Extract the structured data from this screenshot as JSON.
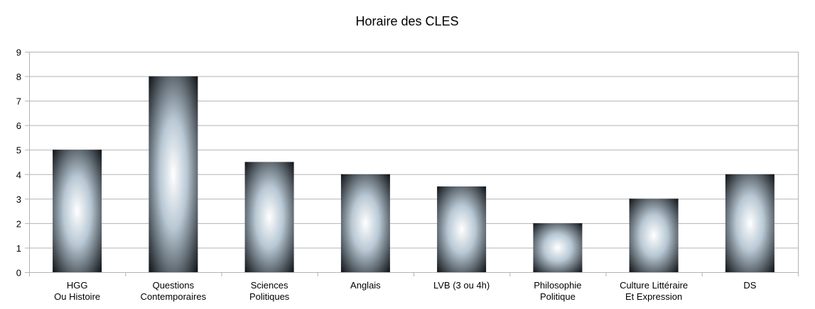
{
  "chart_data": {
    "type": "bar",
    "title": "Horaire des CLES",
    "xlabel": "",
    "ylabel": "",
    "categories": [
      [
        "HGG",
        "Ou Histoire"
      ],
      [
        "Questions",
        "Contemporaires"
      ],
      [
        "Sciences",
        "Politiques"
      ],
      [
        "Anglais"
      ],
      [
        "LVB (3 ou 4h)"
      ],
      [
        "Philosophie",
        "Politique"
      ],
      [
        "Culture Littéraire",
        "Et Expression"
      ],
      [
        "DS"
      ]
    ],
    "values": [
      5,
      8,
      4.5,
      4,
      3.5,
      2,
      3,
      4
    ],
    "ylim": [
      0,
      9
    ],
    "yticks": [
      0,
      1,
      2,
      3,
      4,
      5,
      6,
      7,
      8,
      9
    ],
    "grid": true,
    "legend": "none",
    "colors": {
      "bar_center": "#ffffff",
      "bar_mid": "#b8c8d4",
      "bar_edge": "#101418",
      "grid": "#b3b3b3"
    }
  }
}
